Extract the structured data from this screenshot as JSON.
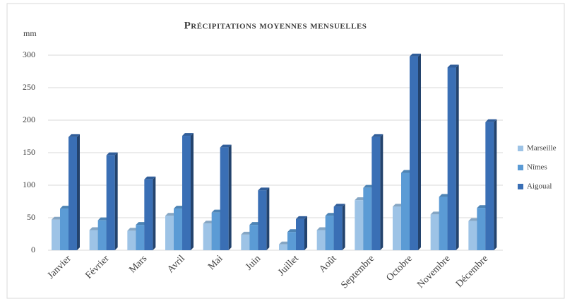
{
  "chart_data": {
    "type": "bar",
    "title": "Précipitations moyennes mensuelles",
    "y_label": "mm",
    "categories": [
      "Janvier",
      "Février",
      "Mars",
      "Avril",
      "Mai",
      "Juin",
      "Juillet",
      "Août",
      "Septembre",
      "Octobre",
      "Novembre",
      "Décembre"
    ],
    "series": [
      {
        "name": "Marseille",
        "color": "#9dc3e6",
        "values": [
          47,
          31,
          30,
          53,
          41,
          24,
          9,
          31,
          77,
          67,
          55,
          45
        ]
      },
      {
        "name": "Nîmes",
        "color": "#5b9bd5",
        "values": [
          64,
          46,
          39,
          64,
          58,
          39,
          28,
          53,
          96,
          119,
          82,
          65
        ]
      },
      {
        "name": "Aigoual",
        "color": "#3a6fb5",
        "values": [
          174,
          146,
          109,
          176,
          158,
          92,
          48,
          67,
          174,
          298,
          281,
          197
        ]
      }
    ],
    "ylim": [
      0,
      300
    ],
    "yticks": [
      0,
      50,
      100,
      150,
      200,
      250,
      300
    ],
    "grid": true,
    "legend": "right"
  }
}
